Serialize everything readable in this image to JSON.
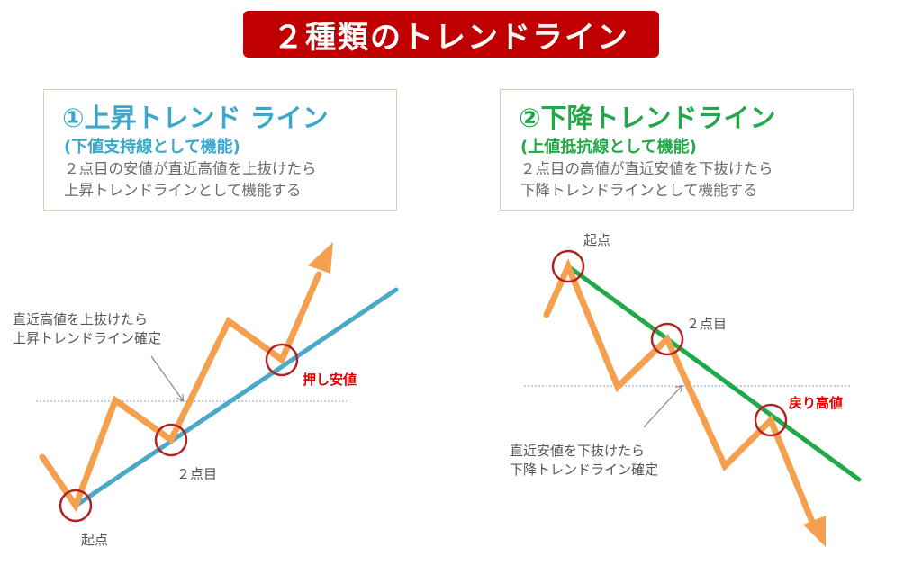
{
  "title": "２種類のトレンドライン",
  "uptrend": {
    "heading": "①上昇トレンド ライン",
    "subheading": "(下値支持線として機能)",
    "description_line1": "２点目の安値が直近高値を上抜けたら",
    "description_line2": "上昇トレンドラインとして機能する",
    "annotation_line1": "直近高値を上抜けたら",
    "annotation_line2": "上昇トレンドライン確定",
    "point_start": "起点",
    "point_second": "２点目",
    "pullback_label": "押し安値"
  },
  "downtrend": {
    "heading": "②下降トレンドライン",
    "subheading": "(上値抵抗線として機能)",
    "description_line1": "２点目の高値が直近安値を下抜けたら",
    "description_line2": "下降トレンドラインとして機能する",
    "annotation_line1": "直近安値を下抜けたら",
    "annotation_line2": "下降トレンドライン確定",
    "point_start": "起点",
    "point_second": "２点目",
    "rally_label": "戻り高値"
  },
  "colors": {
    "banner": "#c00000",
    "price_line": "#f4a04e",
    "uptrend_line": "#4aa8c8",
    "downtrend_line": "#1faa4a",
    "circle": "#b22222",
    "highlight_text": "#e00000",
    "dotted_level": "#7a9fc4"
  }
}
